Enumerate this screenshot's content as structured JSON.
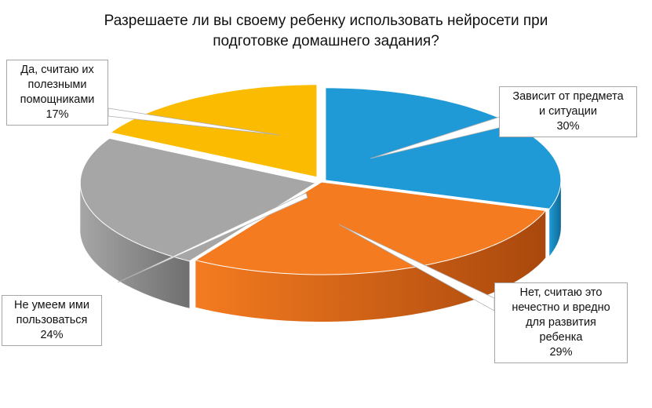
{
  "chart_data": {
    "type": "pie",
    "title_lines": [
      "Разрешаете ли вы своему ребенку использовать нейросети при",
      "подготовке домашнего задания?"
    ],
    "slices": [
      {
        "label_lines": [
          "Зависит от предмета",
          "и ситуации"
        ],
        "value_label": "30%",
        "value": 30,
        "color": "#1f9ad6",
        "side_color": "#106a97"
      },
      {
        "label_lines": [
          "Нет, считаю это",
          "нечестно и вредно",
          "для развития",
          "ребенка"
        ],
        "value_label": "29%",
        "value": 29,
        "color": "#f47b20",
        "side_color": "#a9480d"
      },
      {
        "label_lines": [
          "Не умеем ими",
          "пользоваться"
        ],
        "value_label": "24%",
        "value": 24,
        "color": "#a6a6a6",
        "side_color": "#6f6f6f"
      },
      {
        "label_lines": [
          "Да, считаю их",
          "полезными",
          "помощниками"
        ],
        "value_label": "17%",
        "value": 17,
        "color": "#fbbb00",
        "side_color": "#b08200"
      }
    ],
    "legend": "none",
    "style": "3d-pie-exploded"
  }
}
